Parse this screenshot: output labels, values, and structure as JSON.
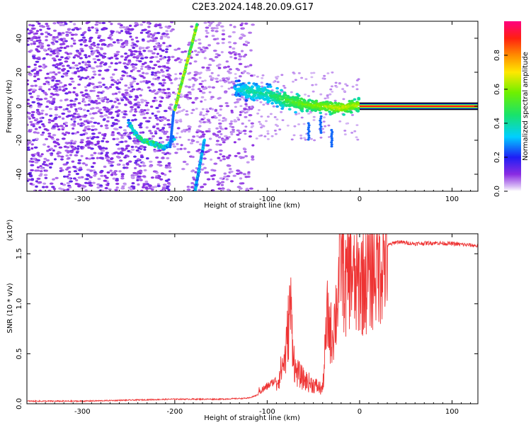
{
  "title": "C2E3.2024.148.20.09.G17",
  "chart_data": [
    {
      "type": "heatmap",
      "xlabel": "Height of straight line (km)",
      "ylabel": "Frequency (Hz)",
      "xlim": [
        -360,
        128
      ],
      "ylim": [
        -50,
        50
      ],
      "xticks": [
        -300,
        -200,
        -100,
        0,
        100
      ],
      "yticks": [
        -40,
        -20,
        0,
        20,
        40
      ],
      "colorbar": {
        "label": "Normalized spectral amplitude",
        "range": [
          0,
          1
        ],
        "ticks": [
          "0.0",
          "0.2",
          "0.4",
          "0.6",
          "0.8"
        ]
      },
      "features": {
        "tone_line": {
          "x_from": 0,
          "x_to": 128,
          "frequency": 0,
          "amplitude": 0.9
        },
        "signal_trace": {
          "x": [
            -135,
            -120,
            -100,
            -80,
            -60,
            -40,
            -20,
            0
          ],
          "frequency": [
            10,
            9,
            7,
            4,
            1,
            0,
            -1,
            1
          ],
          "amplitude": [
            0.3,
            0.4,
            0.4,
            0.5,
            0.55,
            0.6,
            0.65,
            0.6
          ]
        },
        "descending_branch": {
          "x": [
            -250,
            -240,
            -230,
            -220,
            -210,
            -200
          ],
          "frequency": [
            -10,
            -18,
            -21,
            -23,
            -24,
            -18
          ],
          "amplitude": [
            0.3,
            0.4,
            0.45,
            0.4,
            0.35,
            0.3
          ]
        },
        "steep_branch_upper": {
          "x": [
            -200,
            -176
          ],
          "frequency": [
            -2,
            48
          ],
          "amplitude": 0.6
        },
        "steep_branch_lower": {
          "x": [
            -168,
            -178
          ],
          "frequency": [
            -20,
            -50
          ],
          "amplitude": 0.3
        }
      }
    },
    {
      "type": "line",
      "xlabel": "Height of straight line (km)",
      "ylabel": "SNR (10 * v/v)",
      "y_multiplier": "(x10⁴)",
      "xlim": [
        -360,
        128
      ],
      "ylim": [
        0,
        1.7
      ],
      "xticks": [
        -300,
        -200,
        -100,
        0,
        100
      ],
      "yticks": [
        "0.0",
        "0.5",
        "1.0",
        "1.5"
      ],
      "series": [
        {
          "name": "SNR",
          "color": "#ee3333",
          "x": [
            -360,
            -300,
            -250,
            -200,
            -150,
            -120,
            -105,
            -90,
            -80,
            -75,
            -70,
            -60,
            -50,
            -40,
            -35,
            -30,
            -25,
            -20,
            -15,
            -10,
            -5,
            0,
            10,
            20,
            30,
            40,
            60,
            80,
            100,
            128
          ],
          "y": [
            0.02,
            0.02,
            0.03,
            0.04,
            0.04,
            0.05,
            0.1,
            0.2,
            0.5,
            1.05,
            0.35,
            0.25,
            0.2,
            0.15,
            0.9,
            0.7,
            1.0,
            1.65,
            1.2,
            1.5,
            1.2,
            1.3,
            1.35,
            1.5,
            1.58,
            1.62,
            1.6,
            1.61,
            1.6,
            1.58
          ]
        }
      ]
    }
  ]
}
